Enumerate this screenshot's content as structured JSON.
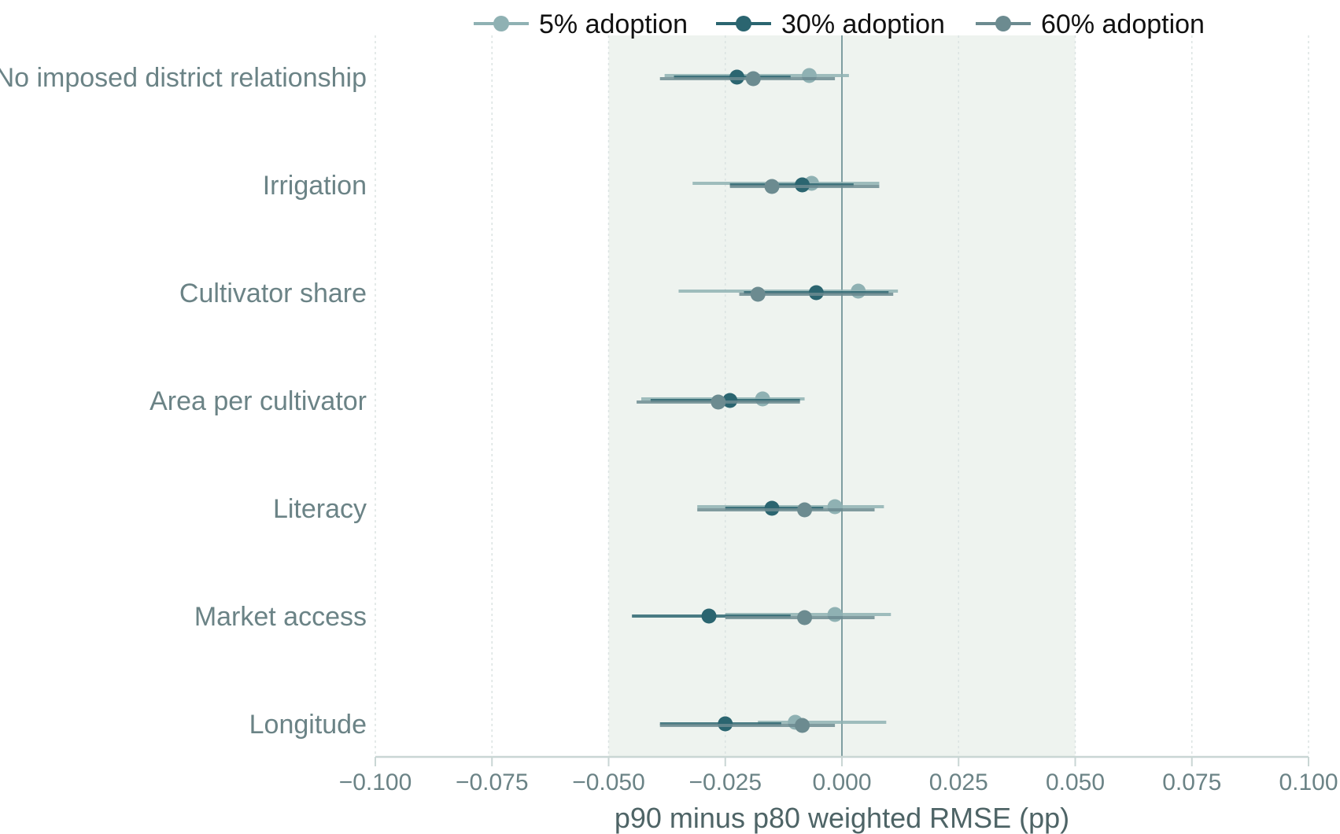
{
  "chart_data": {
    "type": "scatter",
    "subtype": "dot-and-whisker",
    "title": "",
    "xlabel": "p90 minus p80 weighted RMSE (pp)",
    "ylabel": "",
    "xlim": [
      -0.1,
      0.1
    ],
    "xticks": [
      -0.1,
      -0.075,
      -0.05,
      -0.025,
      0.0,
      0.025,
      0.05,
      0.075,
      0.1
    ],
    "xtick_labels": [
      "−0.100",
      "−0.075",
      "−0.050",
      "−0.025",
      "0.000",
      "0.025",
      "0.050",
      "0.075",
      "0.100"
    ],
    "shaded_band": [
      -0.05,
      0.05
    ],
    "reference_line_x": 0.0,
    "grid": "vertical dotted",
    "legend_position": "top",
    "categories": [
      "No imposed district relationship",
      "Irrigation",
      "Cultivator share",
      "Area per cultivator",
      "Literacy",
      "Market access",
      "Longitude"
    ],
    "series": [
      {
        "name": "5% adoption",
        "color": "#8fb1b3",
        "points": [
          {
            "x": -0.007,
            "lo": -0.038,
            "hi": 0.0015
          },
          {
            "x": -0.0065,
            "lo": -0.032,
            "hi": 0.008
          },
          {
            "x": 0.0035,
            "lo": -0.035,
            "hi": 0.012
          },
          {
            "x": -0.017,
            "lo": -0.043,
            "hi": -0.008
          },
          {
            "x": -0.0015,
            "lo": -0.031,
            "hi": 0.009
          },
          {
            "x": -0.0015,
            "lo": -0.025,
            "hi": 0.0105
          },
          {
            "x": -0.01,
            "lo": -0.018,
            "hi": 0.0095
          }
        ]
      },
      {
        "name": "30% adoption",
        "color": "#2b6570",
        "points": [
          {
            "x": -0.0225,
            "lo": -0.036,
            "hi": -0.011
          },
          {
            "x": -0.0085,
            "lo": -0.024,
            "hi": 0.0025
          },
          {
            "x": -0.0055,
            "lo": -0.021,
            "hi": 0.01
          },
          {
            "x": -0.024,
            "lo": -0.041,
            "hi": -0.009
          },
          {
            "x": -0.015,
            "lo": -0.025,
            "hi": -0.004
          },
          {
            "x": -0.0285,
            "lo": -0.045,
            "hi": -0.011
          },
          {
            "x": -0.025,
            "lo": -0.039,
            "hi": -0.013
          }
        ]
      },
      {
        "name": "60% adoption",
        "color": "#6c8b90",
        "points": [
          {
            "x": -0.019,
            "lo": -0.039,
            "hi": -0.0015
          },
          {
            "x": -0.015,
            "lo": -0.024,
            "hi": 0.008
          },
          {
            "x": -0.018,
            "lo": -0.022,
            "hi": 0.011
          },
          {
            "x": -0.0265,
            "lo": -0.044,
            "hi": -0.009
          },
          {
            "x": -0.008,
            "lo": -0.031,
            "hi": 0.007
          },
          {
            "x": -0.008,
            "lo": -0.025,
            "hi": 0.007
          },
          {
            "x": -0.0085,
            "lo": -0.039,
            "hi": -0.0015
          }
        ]
      }
    ]
  }
}
